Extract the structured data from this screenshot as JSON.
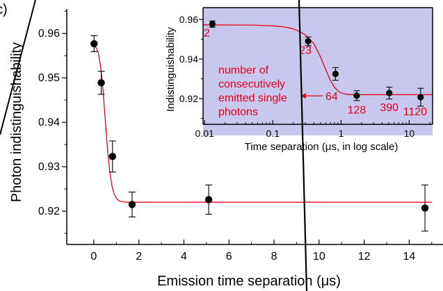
{
  "panel_label": "c)",
  "colors": {
    "fit_line": "#e8001c",
    "points": "#000000",
    "inset_background": "#c8c8ee",
    "annotation": "#e8001c"
  },
  "chart_data": [
    {
      "type": "scatter",
      "title": "",
      "xlabel": "Emission time separation (μs)",
      "ylabel": "Photon indistinguishability",
      "xlim": [
        -1.2,
        15.5
      ],
      "ylim": [
        0.9125,
        0.9655
      ],
      "x_ticks": [
        0,
        2,
        4,
        6,
        8,
        10,
        12,
        14
      ],
      "y_ticks": [
        0.92,
        0.93,
        0.94,
        0.95,
        0.96
      ],
      "x_tick_labels": [
        "0",
        "2",
        "4",
        "6",
        "8",
        "10",
        "12",
        "14"
      ],
      "y_tick_labels": [
        "0.92",
        "0.93",
        "0.94",
        "0.95",
        "0.96"
      ],
      "grid": false,
      "series": [
        {
          "x": [
            0.013,
            0.33,
            0.83,
            1.7,
            5.1,
            14.7
          ],
          "y": [
            0.9577,
            0.9489,
            0.9323,
            0.9215,
            0.9226,
            0.9207
          ],
          "yerr": [
            0.0018,
            0.0026,
            0.0035,
            0.0028,
            0.0033,
            0.0052
          ]
        }
      ],
      "fit_curve": {
        "x": [
          0,
          0.1,
          0.2,
          0.3,
          0.4,
          0.5,
          0.6,
          0.7,
          0.8,
          0.9,
          1.0,
          1.1,
          1.2,
          1.3,
          1.5,
          1.8,
          2.2,
          3,
          6,
          10,
          15
        ],
        "y": [
          0.9573,
          0.9568,
          0.9556,
          0.9527,
          0.9478,
          0.9411,
          0.9345,
          0.9292,
          0.9258,
          0.9239,
          0.9229,
          0.9224,
          0.9222,
          0.9221,
          0.922,
          0.922,
          0.922,
          0.922,
          0.922,
          0.922,
          0.922
        ]
      }
    },
    {
      "type": "scatter",
      "title": "",
      "xlabel": "Time separation (μs, in log scale)",
      "ylabel": "Indistinguishability",
      "x_scale": "log",
      "xlim": [
        0.0095,
        22
      ],
      "ylim": [
        0.907,
        0.966
      ],
      "x_ticks": [
        0.01,
        0.1,
        1,
        10
      ],
      "x_tick_labels": [
        "0.01",
        "0.1",
        "1",
        "10"
      ],
      "y_ticks": [
        0.92,
        0.94,
        0.96
      ],
      "y_tick_labels": [
        "0.92",
        "0.94",
        "0.96"
      ],
      "grid": false,
      "series": [
        {
          "x": [
            0.013,
            0.33,
            0.83,
            1.7,
            5.1,
            14.7
          ],
          "y": [
            0.9577,
            0.949,
            0.9325,
            0.9215,
            0.9228,
            0.9207
          ],
          "yerr": [
            0.0016,
            0.0022,
            0.0032,
            0.0025,
            0.003,
            0.0045
          ],
          "labels": [
            "2",
            "23",
            "64",
            "128",
            "390",
            "1120"
          ]
        }
      ],
      "fit_curve": {
        "x": [
          0.0095,
          0.05,
          0.1,
          0.15,
          0.2,
          0.25,
          0.3,
          0.4,
          0.5,
          0.6,
          0.7,
          0.8,
          0.9,
          1.0,
          1.2,
          1.5,
          2,
          3,
          5,
          10,
          22
        ],
        "y": [
          0.9573,
          0.9572,
          0.9568,
          0.9562,
          0.9553,
          0.9538,
          0.9522,
          0.9478,
          0.9411,
          0.9345,
          0.9292,
          0.9258,
          0.9239,
          0.9229,
          0.9222,
          0.922,
          0.922,
          0.922,
          0.922,
          0.922,
          0.922
        ]
      },
      "annotation": {
        "lines": [
          "number of",
          "consecutively",
          "emitted single",
          "photons"
        ]
      }
    }
  ]
}
